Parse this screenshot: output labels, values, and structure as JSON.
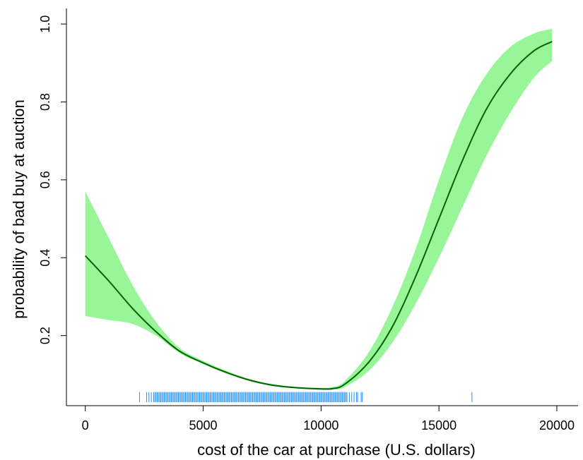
{
  "chart_data": {
    "type": "line",
    "title": "",
    "xlabel": "cost of the car at purchase (U.S. dollars)",
    "ylabel": "probability of bad buy at auction",
    "xlim": [
      -800,
      20900
    ],
    "ylim": [
      0.02,
      1.04
    ],
    "grid": false,
    "x_ticks": [
      0,
      5000,
      10000,
      15000,
      20000
    ],
    "x_tick_labels": [
      "0",
      "5000",
      "10000",
      "15000",
      "20000"
    ],
    "y_ticks": [
      0.2,
      0.4,
      0.6,
      0.8,
      1.0
    ],
    "y_tick_labels": [
      "0.2",
      "0.4",
      "0.6",
      "0.8",
      "1.0"
    ],
    "colors": {
      "line": "#006400",
      "band": "#98f598",
      "rug": "#1e90ff",
      "axis": "#000000"
    },
    "series": [
      {
        "x": [
          0,
          1000,
          2000,
          3000,
          4000,
          5000,
          6000,
          7000,
          8000,
          9000,
          10000,
          10500,
          11000,
          12000,
          13000,
          14000,
          15000,
          16000,
          17000,
          18000,
          19000,
          19800
        ],
        "y": [
          0.405,
          0.34,
          0.27,
          0.21,
          0.16,
          0.13,
          0.105,
          0.085,
          0.072,
          0.066,
          0.063,
          0.064,
          0.075,
          0.13,
          0.22,
          0.35,
          0.5,
          0.65,
          0.78,
          0.87,
          0.93,
          0.955
        ]
      }
    ],
    "confidence_band": {
      "x": [
        0,
        1000,
        2000,
        3000,
        4000,
        5000,
        6000,
        7000,
        8000,
        9000,
        10000,
        10500,
        11000,
        12000,
        13000,
        14000,
        15000,
        16000,
        17000,
        18000,
        19000,
        19800
      ],
      "lower": [
        0.25,
        0.24,
        0.23,
        0.2,
        0.155,
        0.127,
        0.102,
        0.083,
        0.07,
        0.064,
        0.061,
        0.061,
        0.068,
        0.108,
        0.18,
        0.28,
        0.4,
        0.53,
        0.66,
        0.77,
        0.86,
        0.905
      ],
      "upper": [
        0.57,
        0.45,
        0.33,
        0.235,
        0.168,
        0.135,
        0.109,
        0.088,
        0.075,
        0.068,
        0.066,
        0.068,
        0.083,
        0.155,
        0.27,
        0.42,
        0.6,
        0.76,
        0.87,
        0.94,
        0.975,
        0.988
      ]
    },
    "rug": {
      "y_base": 0.029,
      "y_top": 0.055,
      "x": [
        2300,
        2600,
        2700,
        2800,
        2900,
        2950,
        3000,
        3050,
        3100,
        3150,
        3200,
        3250,
        3300,
        3350,
        3400,
        3450,
        3500,
        3550,
        3600,
        3650,
        3700,
        3750,
        3800,
        3850,
        3900,
        3950,
        4000,
        4050,
        4100,
        4150,
        4200,
        4250,
        4300,
        4350,
        4400,
        4450,
        4500,
        4550,
        4600,
        4650,
        4700,
        4750,
        4800,
        4850,
        4900,
        4950,
        5000,
        5050,
        5100,
        5150,
        5200,
        5250,
        5300,
        5350,
        5400,
        5450,
        5500,
        5550,
        5600,
        5650,
        5700,
        5750,
        5800,
        5850,
        5900,
        5950,
        6000,
        6050,
        6100,
        6150,
        6200,
        6250,
        6300,
        6350,
        6400,
        6450,
        6500,
        6550,
        6600,
        6650,
        6700,
        6750,
        6800,
        6850,
        6900,
        6950,
        7000,
        7050,
        7100,
        7150,
        7200,
        7250,
        7300,
        7350,
        7400,
        7450,
        7500,
        7550,
        7600,
        7650,
        7700,
        7750,
        7800,
        7850,
        7900,
        7950,
        8000,
        8050,
        8100,
        8150,
        8200,
        8250,
        8300,
        8350,
        8400,
        8450,
        8500,
        8550,
        8600,
        8650,
        8700,
        8750,
        8800,
        8850,
        8900,
        8950,
        9000,
        9050,
        9100,
        9150,
        9200,
        9250,
        9300,
        9350,
        9400,
        9450,
        9500,
        9550,
        9600,
        9650,
        9700,
        9750,
        9800,
        9850,
        9900,
        9950,
        10000,
        10050,
        10100,
        10150,
        10200,
        10250,
        10300,
        10350,
        10400,
        10450,
        10500,
        10550,
        10600,
        10650,
        10700,
        10750,
        10800,
        10850,
        10900,
        10950,
        11000,
        11050,
        11100,
        11200,
        11300,
        11400,
        11500,
        11550,
        11700,
        11750,
        16400
      ]
    }
  }
}
